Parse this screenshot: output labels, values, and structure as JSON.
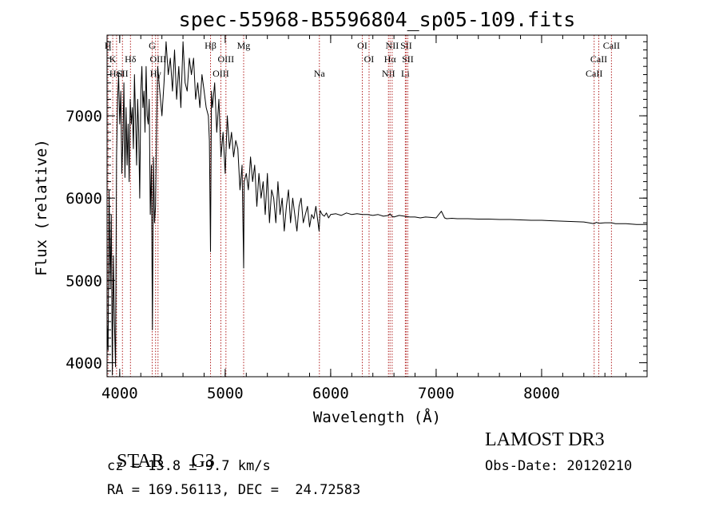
{
  "chart_data": {
    "type": "line",
    "title": "spec-55968-B5596804_sp05-109.fits",
    "xlabel": "Wavelength (Å)",
    "ylabel": "Flux (relative)",
    "xlim": [
      3880,
      9000
    ],
    "ylim": [
      3830,
      7980
    ],
    "x_ticks": [
      4000,
      5000,
      6000,
      7000,
      8000
    ],
    "y_ticks": [
      4000,
      5000,
      6000,
      7000
    ],
    "grid": false,
    "line_color": "#000000",
    "marker_color": "#b22222",
    "series": [
      {
        "x": [
          3880,
          3890,
          3900,
          3910,
          3920,
          3930,
          3940,
          3950,
          3960,
          3970,
          3980,
          3990,
          4000,
          4010,
          4020,
          4030,
          4040,
          4050,
          4060,
          4070,
          4080,
          4090,
          4100,
          4110,
          4120,
          4130,
          4140,
          4150,
          4160,
          4170,
          4180,
          4190,
          4200,
          4210,
          4220,
          4230,
          4240,
          4250,
          4260,
          4270,
          4280,
          4290,
          4300,
          4310,
          4320,
          4330,
          4340,
          4350,
          4360,
          4380,
          4400,
          4420,
          4440,
          4460,
          4480,
          4500,
          4520,
          4540,
          4560,
          4580,
          4600,
          4620,
          4640,
          4660,
          4680,
          4700,
          4720,
          4740,
          4760,
          4780,
          4800,
          4820,
          4840,
          4850,
          4861,
          4870,
          4880,
          4900,
          4920,
          4940,
          4960,
          4980,
          5000,
          5020,
          5040,
          5060,
          5080,
          5100,
          5120,
          5140,
          5160,
          5170,
          5175,
          5180,
          5200,
          5220,
          5240,
          5260,
          5280,
          5300,
          5320,
          5340,
          5360,
          5380,
          5400,
          5420,
          5440,
          5460,
          5480,
          5500,
          5520,
          5540,
          5560,
          5580,
          5600,
          5620,
          5640,
          5660,
          5680,
          5700,
          5720,
          5740,
          5760,
          5780,
          5800,
          5820,
          5840,
          5860,
          5880,
          5890,
          5900,
          5920,
          5940,
          5960,
          5980,
          6000,
          6050,
          6100,
          6150,
          6200,
          6250,
          6300,
          6350,
          6400,
          6450,
          6500,
          6550,
          6563,
          6580,
          6600,
          6650,
          6700,
          6750,
          6800,
          6850,
          6900,
          6950,
          7000,
          7050,
          7080,
          7100,
          7150,
          7200,
          7300,
          7400,
          7500,
          7600,
          7700,
          7800,
          7900,
          8000,
          8100,
          8200,
          8300,
          8400,
          8498,
          8520,
          8542,
          8600,
          8662,
          8700,
          8800,
          8900,
          9000
        ],
        "y": [
          4500,
          4150,
          6100,
          4900,
          5800,
          3850,
          5300,
          4500,
          3950,
          6500,
          7200,
          7500,
          6900,
          7300,
          6300,
          6700,
          7400,
          6250,
          7100,
          6400,
          6900,
          6200,
          7200,
          6900,
          7100,
          6600,
          7500,
          7000,
          6400,
          7200,
          6800,
          6000,
          7300,
          7600,
          7100,
          7300,
          6800,
          7600,
          7000,
          6900,
          7200,
          5800,
          6400,
          4400,
          6500,
          5700,
          5900,
          6900,
          7600,
          7300,
          7000,
          7400,
          7900,
          7500,
          7700,
          7300,
          7800,
          7200,
          7600,
          7100,
          7900,
          7400,
          7300,
          7700,
          7500,
          7700,
          7200,
          7400,
          7100,
          7500,
          7300,
          7100,
          7000,
          6700,
          5350,
          7300,
          7100,
          7400,
          6800,
          7200,
          6500,
          6800,
          6300,
          7000,
          6600,
          6800,
          6500,
          6700,
          6600,
          6100,
          6400,
          5600,
          5150,
          6200,
          6300,
          6100,
          6500,
          6200,
          6400,
          5900,
          6300,
          6000,
          6200,
          5800,
          6300,
          5700,
          6100,
          6000,
          5700,
          6200,
          5800,
          6000,
          5600,
          5900,
          6100,
          5700,
          6000,
          5800,
          5600,
          5900,
          6000,
          5700,
          5800,
          5900,
          5650,
          5800,
          5750,
          5900,
          5700,
          5600,
          5850,
          5800,
          5780,
          5820,
          5760,
          5800,
          5810,
          5790,
          5820,
          5800,
          5810,
          5800,
          5800,
          5790,
          5800,
          5780,
          5790,
          5810,
          5780,
          5770,
          5790,
          5780,
          5770,
          5770,
          5760,
          5770,
          5765,
          5760,
          5840,
          5760,
          5750,
          5755,
          5750,
          5750,
          5745,
          5745,
          5740,
          5740,
          5735,
          5730,
          5730,
          5725,
          5720,
          5715,
          5710,
          5690,
          5705,
          5695,
          5700,
          5700,
          5690,
          5690,
          5680,
          5680
        ]
      }
    ],
    "line_markers": [
      {
        "x": 3889,
        "labels": [
          {
            "text": "H",
            "row": 1
          }
        ]
      },
      {
        "x": 3934,
        "labels": [
          {
            "text": "K",
            "row": 2
          }
        ]
      },
      {
        "x": 3970,
        "labels": [
          {
            "text": "HeI",
            "row": 3
          }
        ]
      },
      {
        "x": 4026,
        "labels": [
          {
            "text": "SII",
            "row": 3
          }
        ]
      },
      {
        "x": 4102,
        "labels": [
          {
            "text": "Hδ",
            "row": 2
          }
        ]
      },
      {
        "x": 4308,
        "labels": [
          {
            "text": "G",
            "row": 1
          }
        ]
      },
      {
        "x": 4340,
        "labels": [
          {
            "text": "Hγ",
            "row": 3
          }
        ]
      },
      {
        "x": 4363,
        "labels": [
          {
            "text": "OIII",
            "row": 2
          }
        ]
      },
      {
        "x": 4861,
        "labels": [
          {
            "text": "Hβ",
            "row": 1
          }
        ]
      },
      {
        "x": 4959,
        "labels": [
          {
            "text": "OIII",
            "row": 3
          }
        ]
      },
      {
        "x": 5007,
        "labels": [
          {
            "text": "OIII",
            "row": 2
          }
        ]
      },
      {
        "x": 5175,
        "labels": [
          {
            "text": "Mg",
            "row": 1
          }
        ]
      },
      {
        "x": 5893,
        "labels": [
          {
            "text": "Na",
            "row": 3
          }
        ]
      },
      {
        "x": 6300,
        "labels": [
          {
            "text": "OI",
            "row": 1
          }
        ]
      },
      {
        "x": 6364,
        "labels": [
          {
            "text": "OI",
            "row": 2
          }
        ]
      },
      {
        "x": 6548,
        "labels": [
          {
            "text": "NII",
            "row": 3
          }
        ]
      },
      {
        "x": 6563,
        "labels": [
          {
            "text": "Hα",
            "row": 2
          }
        ]
      },
      {
        "x": 6583,
        "labels": [
          {
            "text": "NII",
            "row": 1
          }
        ]
      },
      {
        "x": 6708,
        "labels": [
          {
            "text": "Li",
            "row": 3
          }
        ]
      },
      {
        "x": 6716,
        "labels": [
          {
            "text": "SII",
            "row": 1
          }
        ]
      },
      {
        "x": 6731,
        "labels": [
          {
            "text": "SII",
            "row": 2
          }
        ]
      },
      {
        "x": 8498,
        "labels": [
          {
            "text": "CaII",
            "row": 3
          }
        ]
      },
      {
        "x": 8542,
        "labels": [
          {
            "text": "CaII",
            "row": 2
          }
        ]
      },
      {
        "x": 8662,
        "labels": [
          {
            "text": "CaII",
            "row": 1
          }
        ]
      }
    ]
  },
  "info": {
    "class_label": "STAR",
    "subclass": "G3",
    "survey": "LAMOST DR3",
    "redshift": "cz = 13.8 ± 9.7 km/s",
    "obs_date": "Obs-Date: 20120210",
    "coords": "RA = 169.56113, DEC =  24.72583"
  }
}
